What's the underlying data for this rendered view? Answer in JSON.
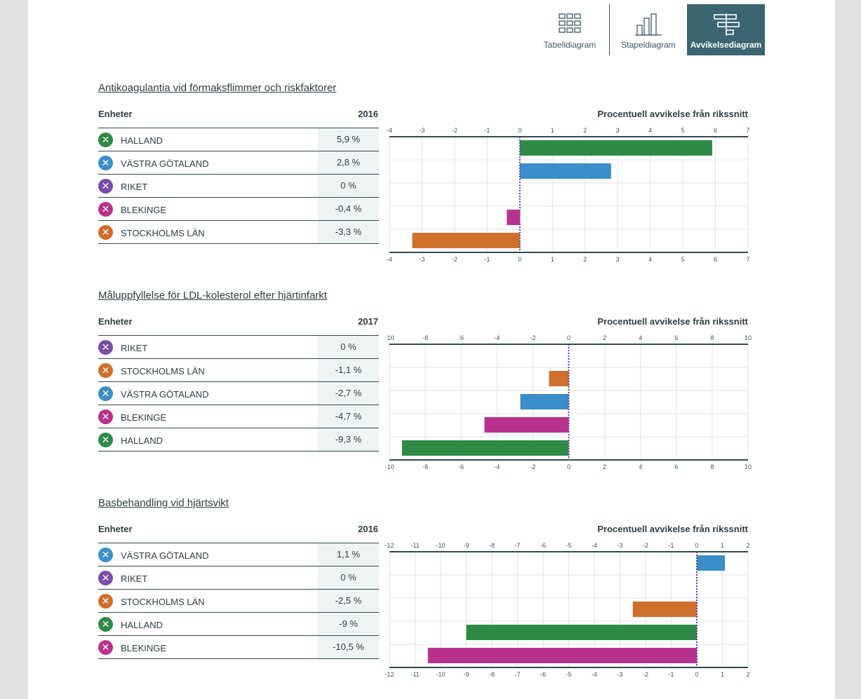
{
  "toolbar": {
    "buttons": [
      {
        "label": "Tabelldiagram",
        "icon": "table-chart-icon",
        "active": false
      },
      {
        "label": "Stapeldiagram",
        "icon": "bar-chart-icon",
        "active": false
      },
      {
        "label": "Avvikelsediagram",
        "icon": "deviation-chart-icon",
        "active": true
      }
    ]
  },
  "colors": {
    "axis": "#2f4a52",
    "grid": "#e2e5e6",
    "zero_line": "#6b3fa0",
    "active_button": "#3b6570"
  },
  "sections": [
    {
      "title": "Antikoagulantia vid förmaksflimmer och riskfaktorer",
      "units_header": "Enheter",
      "year": "2016",
      "axis_title": "Procentuell avvikelse från rikssnitt",
      "rows": [
        {
          "name": "HALLAND",
          "value_text": "5,9 %",
          "color": "#2e8b45",
          "remove_icon": "close-icon"
        },
        {
          "name": "VÄSTRA GÖTALAND",
          "value_text": "2,8 %",
          "color": "#3a8ec9",
          "remove_icon": "close-icon"
        },
        {
          "name": "RIKET",
          "value_text": "0 %",
          "color": "#7a4da8",
          "remove_icon": "close-icon"
        },
        {
          "name": "BLEKINGE",
          "value_text": "-0,4 %",
          "color": "#b8318f",
          "remove_icon": "close-icon"
        },
        {
          "name": "STOCKHOLMS LÄN",
          "value_text": "-3,3 %",
          "color": "#cf6f2a",
          "remove_icon": "close-icon"
        }
      ]
    },
    {
      "title": "Måluppfyllelse för LDL-kolesterol efter hjärtinfarkt",
      "units_header": "Enheter",
      "year": "2017",
      "axis_title": "Procentuell avvikelse från rikssnitt",
      "rows": [
        {
          "name": "RIKET",
          "value_text": "0 %",
          "color": "#7a4da8",
          "remove_icon": "close-icon"
        },
        {
          "name": "STOCKHOLMS LÄN",
          "value_text": "-1,1 %",
          "color": "#cf6f2a",
          "remove_icon": "close-icon"
        },
        {
          "name": "VÄSTRA GÖTALAND",
          "value_text": "-2,7 %",
          "color": "#3a8ec9",
          "remove_icon": "close-icon"
        },
        {
          "name": "BLEKINGE",
          "value_text": "-4,7 %",
          "color": "#b8318f",
          "remove_icon": "close-icon"
        },
        {
          "name": "HALLAND",
          "value_text": "-9,3 %",
          "color": "#2e8b45",
          "remove_icon": "close-icon"
        }
      ]
    },
    {
      "title": "Basbehandling vid hjärtsvikt",
      "units_header": "Enheter",
      "year": "2016",
      "axis_title": "Procentuell avvikelse från rikssnitt",
      "rows": [
        {
          "name": "VÄSTRA GÖTALAND",
          "value_text": "1,1 %",
          "color": "#3a8ec9",
          "remove_icon": "close-icon"
        },
        {
          "name": "RIKET",
          "value_text": "0 %",
          "color": "#7a4da8",
          "remove_icon": "close-icon"
        },
        {
          "name": "STOCKHOLMS LÄN",
          "value_text": "-2,5 %",
          "color": "#cf6f2a",
          "remove_icon": "close-icon"
        },
        {
          "name": "HALLAND",
          "value_text": "-9 %",
          "color": "#2e8b45",
          "remove_icon": "close-icon"
        },
        {
          "name": "BLEKINGE",
          "value_text": "-10,5 %",
          "color": "#b8318f",
          "remove_icon": "close-icon"
        }
      ]
    }
  ],
  "chart_data": [
    {
      "type": "bar",
      "orientation": "horizontal",
      "title": "Antikoagulantia vid förmaksflimmer och riskfaktorer",
      "xlabel": "Procentuell avvikelse från rikssnitt",
      "categories": [
        "HALLAND",
        "VÄSTRA GÖTALAND",
        "RIKET",
        "BLEKINGE",
        "STOCKHOLMS LÄN"
      ],
      "values": [
        5.9,
        2.8,
        0,
        -0.4,
        -3.3
      ],
      "xlim": [
        -4,
        7
      ],
      "ticks": [
        -4,
        -3,
        -2,
        -1,
        0,
        1,
        2,
        3,
        4,
        5,
        6,
        7
      ],
      "grid": true
    },
    {
      "type": "bar",
      "orientation": "horizontal",
      "title": "Måluppfyllelse för LDL-kolesterol efter hjärtinfarkt",
      "xlabel": "Procentuell avvikelse från rikssnitt",
      "categories": [
        "RIKET",
        "STOCKHOLMS LÄN",
        "VÄSTRA GÖTALAND",
        "BLEKINGE",
        "HALLAND"
      ],
      "values": [
        0,
        -1.1,
        -2.7,
        -4.7,
        -9.3
      ],
      "xlim": [
        -10,
        10
      ],
      "ticks": [
        -10,
        -8,
        -6,
        -4,
        -2,
        0,
        2,
        4,
        6,
        8,
        10
      ],
      "grid": true
    },
    {
      "type": "bar",
      "orientation": "horizontal",
      "title": "Basbehandling vid hjärtsvikt",
      "xlabel": "Procentuell avvikelse från rikssnitt",
      "categories": [
        "VÄSTRA GÖTALAND",
        "RIKET",
        "STOCKHOLMS LÄN",
        "HALLAND",
        "BLEKINGE"
      ],
      "values": [
        1.1,
        0,
        -2.5,
        -9,
        -10.5
      ],
      "xlim": [
        -12,
        2
      ],
      "ticks": [
        -12,
        -11,
        -10,
        -9,
        -8,
        -7,
        -6,
        -5,
        -4,
        -3,
        -2,
        -1,
        0,
        1,
        2
      ],
      "grid": true
    }
  ]
}
